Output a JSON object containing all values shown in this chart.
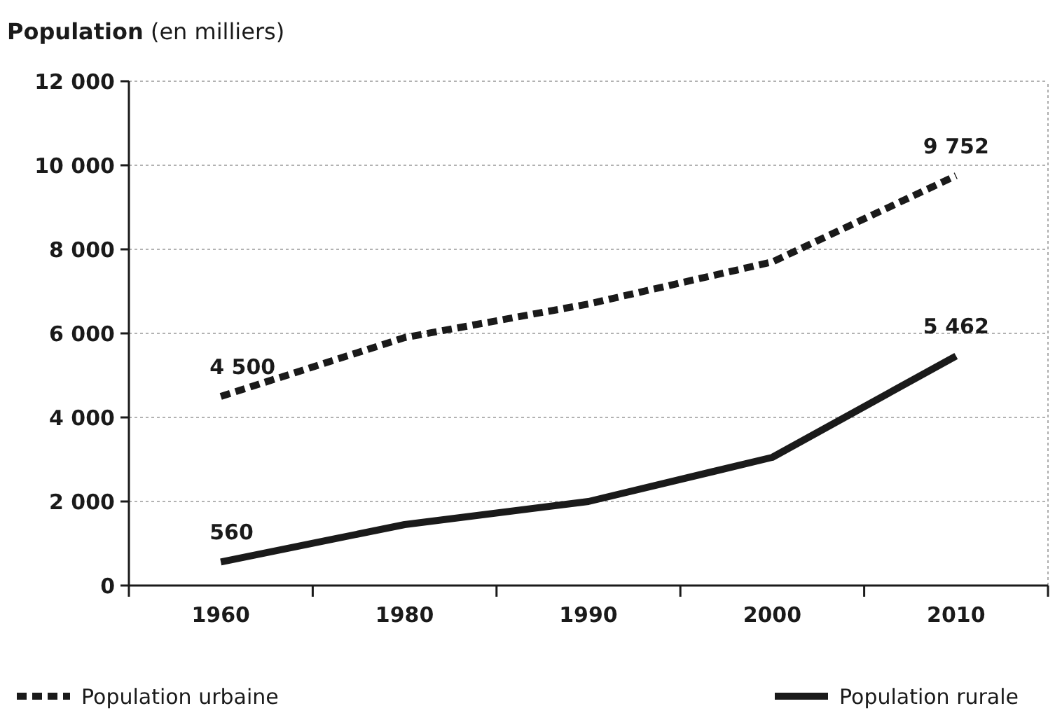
{
  "chart_data": {
    "type": "line",
    "title": "Population (en milliers)",
    "categories": [
      "1960",
      "1980",
      "1990",
      "2000",
      "2010"
    ],
    "series": [
      {
        "name": "Population urbaine",
        "color": "#1a1a1a",
        "line_style": "dashed",
        "values": [
          4500,
          5900,
          6700,
          7700,
          9752
        ],
        "value_labels": [
          "4 500",
          null,
          null,
          null,
          "9 752"
        ]
      },
      {
        "name": "Population rurale",
        "color": "#1a1a1a",
        "line_style": "solid",
        "values": [
          560,
          1450,
          2000,
          3050,
          5462
        ],
        "value_labels": [
          "560",
          null,
          null,
          null,
          "5 462"
        ]
      }
    ],
    "ylim": [
      0,
      12000
    ],
    "yticks": [
      {
        "value": 0,
        "label": "0"
      },
      {
        "value": 2000,
        "label": "2 000"
      },
      {
        "value": 4000,
        "label": "4 000"
      },
      {
        "value": 6000,
        "label": "6 000"
      },
      {
        "value": 8000,
        "label": "8 000"
      },
      {
        "value": 10000,
        "label": "10 000"
      },
      {
        "value": 12000,
        "label": "12 000"
      }
    ],
    "grid": "y",
    "legend": "bottom"
  }
}
